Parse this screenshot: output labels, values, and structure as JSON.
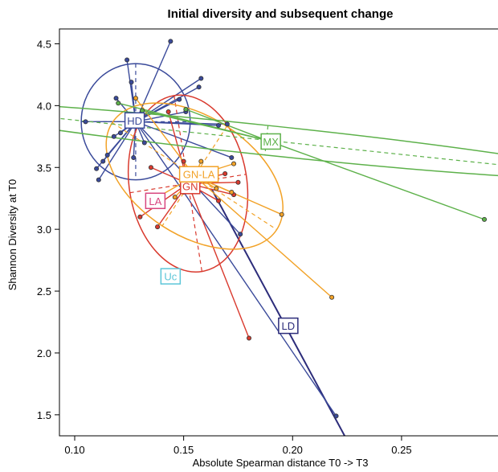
{
  "chart_data": {
    "type": "scatter",
    "title": "Initial diversity and subsequent change",
    "xlabel": "Absolute Spearman distance T0 -> T3",
    "ylabel": "Shannon Diversity at T0",
    "xlim": [
      0.093,
      0.295
    ],
    "ylim": [
      1.33,
      4.62
    ],
    "x_ticks": [
      "0.10",
      "0.15",
      "0.20",
      "0.25"
    ],
    "y_ticks": [
      "1.5",
      "2.0",
      "2.5",
      "3.0",
      "3.5",
      "4.0",
      "4.5"
    ],
    "grid": false,
    "legend": "none",
    "groups": [
      {
        "label": "HD",
        "color": "#3a4a9a",
        "centroid": [
          0.128,
          3.87
        ],
        "ellipse": {
          "rx": 0.025,
          "ry": 0.47,
          "angle_deg": 0
        },
        "points": [
          [
            0.105,
            3.87
          ],
          [
            0.11,
            3.49
          ],
          [
            0.111,
            3.4
          ],
          [
            0.113,
            3.55
          ],
          [
            0.115,
            3.6
          ],
          [
            0.118,
            3.75
          ],
          [
            0.119,
            4.06
          ],
          [
            0.121,
            3.78
          ],
          [
            0.124,
            4.37
          ],
          [
            0.126,
            4.19
          ],
          [
            0.127,
            3.58
          ],
          [
            0.132,
            3.7
          ],
          [
            0.144,
            4.52
          ],
          [
            0.148,
            4.05
          ],
          [
            0.151,
            3.95
          ],
          [
            0.166,
            3.84
          ],
          [
            0.17,
            3.85
          ],
          [
            0.172,
            3.58
          ],
          [
            0.176,
            2.96
          ],
          [
            0.22,
            1.49
          ],
          [
            0.158,
            4.22
          ],
          [
            0.157,
            4.15
          ]
        ]
      },
      {
        "label": "GN",
        "color": "#d93a2e",
        "centroid": [
          0.152,
          3.37
        ],
        "ellipse": {
          "rx": 0.027,
          "ry": 0.72,
          "angle_deg": -9
        },
        "points": [
          [
            0.13,
            3.1
          ],
          [
            0.135,
            3.5
          ],
          [
            0.138,
            3.02
          ],
          [
            0.143,
            3.95
          ],
          [
            0.15,
            3.55
          ],
          [
            0.155,
            3.4
          ],
          [
            0.166,
            3.23
          ],
          [
            0.169,
            3.45
          ],
          [
            0.173,
            3.28
          ],
          [
            0.175,
            3.38
          ],
          [
            0.18,
            2.12
          ]
        ]
      },
      {
        "label": "GN-LA",
        "color": "#f2a227",
        "centroid": [
          0.155,
          3.43
        ],
        "ellipse": {
          "rx": 0.045,
          "ry": 0.48,
          "angle_deg": 33
        },
        "points": [
          [
            0.128,
            4.06
          ],
          [
            0.137,
            3.25
          ],
          [
            0.146,
            3.26
          ],
          [
            0.15,
            3.3
          ],
          [
            0.158,
            3.55
          ],
          [
            0.165,
            3.33
          ],
          [
            0.172,
            3.3
          ],
          [
            0.173,
            3.53
          ],
          [
            0.195,
            3.12
          ],
          [
            0.218,
            2.45
          ]
        ]
      },
      {
        "label": "MX",
        "color": "#5db14a",
        "centroid": [
          0.188,
          3.72
        ],
        "ellipse": {
          "rx": 0.158,
          "ry": 0.12,
          "angle_deg": 6
        },
        "points": [
          [
            0.12,
            4.02
          ],
          [
            0.131,
            3.96
          ],
          [
            0.151,
            3.97
          ],
          [
            0.288,
            3.08
          ]
        ]
      },
      {
        "label": "LA",
        "color": "#d8467f",
        "centroid": [
          0.137,
          3.23
        ],
        "ellipse": null,
        "points": []
      },
      {
        "label": "Uc",
        "color": "#5cc6d8",
        "centroid": [
          0.144,
          2.62
        ],
        "ellipse": null,
        "points": []
      }
    ],
    "ld_line": {
      "label": "LD",
      "color": "#2c2c7a",
      "from": [
        0.163,
        3.32
      ],
      "to": [
        0.23,
        1.13
      ],
      "label_pos": [
        0.198,
        2.22
      ]
    }
  }
}
